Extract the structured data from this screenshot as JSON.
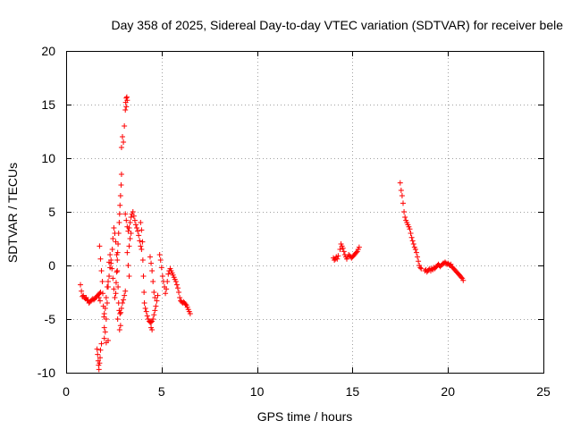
{
  "chart_data": {
    "type": "scatter",
    "title": "Day 358 of 2025, Sidereal Day-to-day VTEC variation (SDTVAR) for receiver bele",
    "xlabel": "GPS time / hours",
    "ylabel": "SDTVAR / TECUs",
    "xlim": [
      0,
      25
    ],
    "ylim": [
      -10,
      20
    ],
    "x_ticks": [
      0,
      5,
      10,
      15,
      20,
      25
    ],
    "y_ticks": [
      -10,
      -5,
      0,
      5,
      10,
      15,
      20
    ],
    "grid": true,
    "marker": "+",
    "color": "#ff0000",
    "series": [
      {
        "name": "SDTVAR",
        "points": [
          [
            0.75,
            -1.8
          ],
          [
            0.8,
            -2.4
          ],
          [
            0.85,
            -2.9
          ],
          [
            0.9,
            -2.8
          ],
          [
            0.95,
            -3.0
          ],
          [
            1.0,
            -3.1
          ],
          [
            1.05,
            -3.0
          ],
          [
            1.1,
            -3.2
          ],
          [
            1.15,
            -3.3
          ],
          [
            1.2,
            -3.5
          ],
          [
            1.25,
            -3.4
          ],
          [
            1.3,
            -3.3
          ],
          [
            1.35,
            -3.2
          ],
          [
            1.4,
            -3.1
          ],
          [
            1.45,
            -3.2
          ],
          [
            1.5,
            -3.1
          ],
          [
            1.55,
            -3.0
          ],
          [
            1.6,
            -2.9
          ],
          [
            1.65,
            -2.8
          ],
          [
            1.7,
            -2.7
          ],
          [
            1.72,
            -3.0
          ],
          [
            1.75,
            -2.6
          ],
          [
            1.78,
            -3.3
          ],
          [
            1.8,
            -2.5
          ],
          [
            1.62,
            -7.8
          ],
          [
            1.65,
            -8.3
          ],
          [
            1.68,
            -8.9
          ],
          [
            1.7,
            -9.3
          ],
          [
            1.72,
            -9.7
          ],
          [
            1.75,
            -9.1
          ],
          [
            1.78,
            -8.6
          ],
          [
            1.8,
            -7.9
          ],
          [
            1.85,
            -7.3
          ],
          [
            1.75,
            1.8
          ],
          [
            1.8,
            0.6
          ],
          [
            1.85,
            -0.5
          ],
          [
            1.9,
            -1.5
          ],
          [
            1.92,
            -2.6
          ],
          [
            1.95,
            -3.8
          ],
          [
            1.98,
            -4.8
          ],
          [
            2.0,
            -5.8
          ],
          [
            2.05,
            -6.2
          ],
          [
            2.1,
            -5.0
          ],
          [
            2.15,
            -3.5
          ],
          [
            2.2,
            -2.0
          ],
          [
            2.25,
            -1.0
          ],
          [
            2.3,
            -0.2
          ],
          [
            2.35,
            0.2
          ],
          [
            2.4,
            -0.3
          ],
          [
            2.45,
            -1.2
          ],
          [
            2.5,
            -2.2
          ],
          [
            2.55,
            -3.0
          ],
          [
            2.6,
            -2.6
          ],
          [
            2.62,
            -1.6
          ],
          [
            2.65,
            -0.6
          ],
          [
            2.68,
            0.5
          ],
          [
            2.7,
            1.2
          ],
          [
            2.72,
            2.0
          ],
          [
            2.75,
            3.0
          ],
          [
            2.78,
            4.0
          ],
          [
            2.8,
            4.8
          ],
          [
            2.82,
            5.6
          ],
          [
            2.85,
            6.5
          ],
          [
            2.88,
            7.5
          ],
          [
            2.9,
            8.5
          ],
          [
            2.0,
            -4.5
          ],
          [
            2.05,
            -4.0
          ],
          [
            2.1,
            -3.0
          ],
          [
            2.15,
            -2.0
          ],
          [
            2.2,
            -1.5
          ],
          [
            2.25,
            0.3
          ],
          [
            2.3,
            1.0
          ],
          [
            2.35,
            0.5
          ],
          [
            2.42,
            1.5
          ],
          [
            2.45,
            2.5
          ],
          [
            2.5,
            3.5
          ],
          [
            2.55,
            3.0
          ],
          [
            2.6,
            2.2
          ],
          [
            2.65,
            1.0
          ],
          [
            2.68,
            -0.5
          ],
          [
            2.72,
            -2.0
          ],
          [
            2.75,
            -3.5
          ],
          [
            2.78,
            -4.2
          ],
          [
            2.82,
            -4.5
          ],
          [
            2.86,
            -4.4
          ],
          [
            2.9,
            -4.0
          ],
          [
            2.95,
            -3.5
          ],
          [
            3.0,
            -3.2
          ],
          [
            3.05,
            -2.8
          ],
          [
            3.1,
            -2.4
          ],
          [
            2.2,
            -7.0
          ],
          [
            2.0,
            -6.8
          ],
          [
            2.1,
            -7.2
          ],
          [
            2.7,
            -5.0
          ],
          [
            2.8,
            -6.0
          ],
          [
            2.85,
            -5.6
          ],
          [
            2.9,
            11.0
          ],
          [
            2.95,
            12.0
          ],
          [
            3.0,
            11.5
          ],
          [
            3.05,
            13.0
          ],
          [
            3.1,
            14.5
          ],
          [
            3.12,
            15.2
          ],
          [
            3.15,
            15.6
          ],
          [
            3.18,
            15.7
          ],
          [
            3.2,
            15.4
          ],
          [
            3.15,
            14.8
          ],
          [
            3.1,
            4.8
          ],
          [
            3.15,
            4.2
          ],
          [
            3.2,
            3.6
          ],
          [
            3.25,
            3.2
          ],
          [
            3.3,
            3.5
          ],
          [
            3.35,
            4.0
          ],
          [
            3.4,
            4.5
          ],
          [
            3.45,
            4.8
          ],
          [
            3.5,
            5.0
          ],
          [
            3.55,
            4.6
          ],
          [
            3.6,
            4.2
          ],
          [
            3.65,
            3.8
          ],
          [
            3.7,
            3.5
          ],
          [
            3.75,
            3.2
          ],
          [
            3.8,
            2.8
          ],
          [
            3.85,
            2.3
          ],
          [
            3.9,
            1.8
          ],
          [
            3.95,
            1.5
          ],
          [
            3.2,
            1.2
          ],
          [
            3.25,
            0.0
          ],
          [
            3.3,
            -1.0
          ],
          [
            3.3,
            1.8
          ],
          [
            3.35,
            2.5
          ],
          [
            3.4,
            3.0
          ],
          [
            3.9,
            4.0
          ],
          [
            3.95,
            3.3
          ],
          [
            4.0,
            2.2
          ],
          [
            4.02,
            0.5
          ],
          [
            4.05,
            -1.0
          ],
          [
            4.08,
            -2.5
          ],
          [
            4.1,
            -3.5
          ],
          [
            4.15,
            -4.0
          ],
          [
            4.2,
            -4.3
          ],
          [
            4.25,
            -4.7
          ],
          [
            4.3,
            -5.0
          ],
          [
            4.35,
            -5.2
          ],
          [
            4.4,
            -5.3
          ],
          [
            4.45,
            -5.3
          ],
          [
            4.5,
            -5.2
          ],
          [
            4.55,
            -5.0
          ],
          [
            4.6,
            -4.6
          ],
          [
            4.65,
            -4.2
          ],
          [
            4.7,
            -3.8
          ],
          [
            4.75,
            -3.3
          ],
          [
            4.8,
            -2.8
          ],
          [
            4.4,
            0.8
          ],
          [
            4.45,
            0.2
          ],
          [
            4.5,
            -0.5
          ],
          [
            4.55,
            -1.5
          ],
          [
            4.6,
            -2.5
          ],
          [
            4.65,
            -3.0
          ],
          [
            4.5,
            -6.0
          ],
          [
            4.45,
            -5.8
          ],
          [
            4.9,
            1.0
          ],
          [
            4.95,
            0.5
          ],
          [
            5.0,
            -0.2
          ],
          [
            5.05,
            -1.0
          ],
          [
            5.1,
            -1.5
          ],
          [
            5.15,
            -2.0
          ],
          [
            5.2,
            -2.6
          ],
          [
            5.25,
            -2.2
          ],
          [
            5.3,
            -1.5
          ],
          [
            5.35,
            -0.8
          ],
          [
            5.4,
            -0.5
          ],
          [
            5.45,
            -0.3
          ],
          [
            5.5,
            -0.5
          ],
          [
            5.55,
            -0.7
          ],
          [
            5.6,
            -0.9
          ],
          [
            5.65,
            -1.1
          ],
          [
            5.7,
            -1.3
          ],
          [
            5.75,
            -1.5
          ],
          [
            5.8,
            -1.8
          ],
          [
            5.85,
            -2.1
          ],
          [
            5.9,
            -2.5
          ],
          [
            5.95,
            -3.0
          ],
          [
            6.0,
            -3.3
          ],
          [
            6.05,
            -3.4
          ],
          [
            6.1,
            -3.5
          ],
          [
            6.15,
            -3.4
          ],
          [
            6.2,
            -3.5
          ],
          [
            6.25,
            -3.6
          ],
          [
            6.3,
            -3.7
          ],
          [
            6.35,
            -3.9
          ],
          [
            6.4,
            -4.1
          ],
          [
            6.45,
            -4.3
          ],
          [
            6.5,
            -4.5
          ],
          [
            14.0,
            0.7
          ],
          [
            14.05,
            0.5
          ],
          [
            14.1,
            0.6
          ],
          [
            14.15,
            0.8
          ],
          [
            14.2,
            0.6
          ],
          [
            14.25,
            0.9
          ],
          [
            14.35,
            1.5
          ],
          [
            14.4,
            2.0
          ],
          [
            14.45,
            1.8
          ],
          [
            14.5,
            1.6
          ],
          [
            14.55,
            1.3
          ],
          [
            14.6,
            1.0
          ],
          [
            14.65,
            0.8
          ],
          [
            14.7,
            0.6
          ],
          [
            14.75,
            0.8
          ],
          [
            14.8,
            1.0
          ],
          [
            14.85,
            0.9
          ],
          [
            14.9,
            0.8
          ],
          [
            14.95,
            0.7
          ],
          [
            15.0,
            0.8
          ],
          [
            15.05,
            0.9
          ],
          [
            15.1,
            1.0
          ],
          [
            15.15,
            1.1
          ],
          [
            15.2,
            1.2
          ],
          [
            15.25,
            1.3
          ],
          [
            15.3,
            1.5
          ],
          [
            15.35,
            1.7
          ],
          [
            17.5,
            7.7
          ],
          [
            17.55,
            7.0
          ],
          [
            17.6,
            6.5
          ],
          [
            17.65,
            5.8
          ],
          [
            17.7,
            5.0
          ],
          [
            17.75,
            4.5
          ],
          [
            17.8,
            4.2
          ],
          [
            17.85,
            4.0
          ],
          [
            17.9,
            3.8
          ],
          [
            17.95,
            3.6
          ],
          [
            18.0,
            3.4
          ],
          [
            18.05,
            3.0
          ],
          [
            18.1,
            2.6
          ],
          [
            18.15,
            2.3
          ],
          [
            18.2,
            2.0
          ],
          [
            18.25,
            1.7
          ],
          [
            18.3,
            1.5
          ],
          [
            18.35,
            1.2
          ],
          [
            18.4,
            0.8
          ],
          [
            18.45,
            0.4
          ],
          [
            18.5,
            0.0
          ],
          [
            18.55,
            -0.2
          ],
          [
            18.6,
            -0.3
          ],
          [
            18.8,
            -0.5
          ],
          [
            18.85,
            -0.4
          ],
          [
            18.9,
            -0.6
          ],
          [
            18.95,
            -0.5
          ],
          [
            19.0,
            -0.4
          ],
          [
            19.05,
            -0.3
          ],
          [
            19.1,
            -0.5
          ],
          [
            19.15,
            -0.3
          ],
          [
            19.2,
            -0.4
          ],
          [
            19.25,
            -0.2
          ],
          [
            19.3,
            -0.3
          ],
          [
            19.35,
            -0.2
          ],
          [
            19.4,
            -0.1
          ],
          [
            19.45,
            0.0
          ],
          [
            19.5,
            0.1
          ],
          [
            19.55,
            0.0
          ],
          [
            19.6,
            -0.1
          ],
          [
            19.65,
            0.0
          ],
          [
            19.7,
            0.1
          ],
          [
            19.75,
            0.2
          ],
          [
            19.8,
            0.2
          ],
          [
            19.85,
            0.3
          ],
          [
            19.9,
            0.2
          ],
          [
            19.95,
            0.1
          ],
          [
            20.0,
            0.2
          ],
          [
            20.05,
            0.1
          ],
          [
            20.1,
            0.0
          ],
          [
            20.15,
            0.1
          ],
          [
            20.2,
            -0.1
          ],
          [
            20.25,
            -0.2
          ],
          [
            20.3,
            -0.3
          ],
          [
            20.35,
            -0.4
          ],
          [
            20.4,
            -0.5
          ],
          [
            20.45,
            -0.6
          ],
          [
            20.5,
            -0.7
          ],
          [
            20.55,
            -0.8
          ],
          [
            20.6,
            -0.9
          ],
          [
            20.65,
            -1.0
          ],
          [
            20.7,
            -1.1
          ],
          [
            20.75,
            -1.2
          ],
          [
            20.8,
            -1.4
          ]
        ]
      }
    ]
  }
}
